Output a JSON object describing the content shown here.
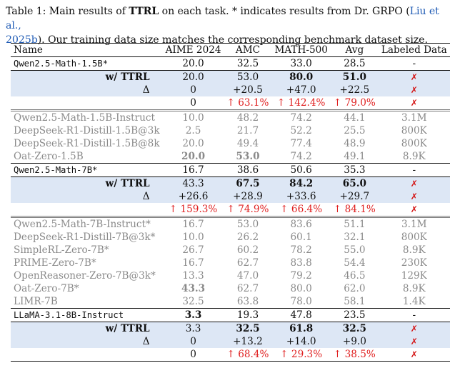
{
  "caption": {
    "prefix": "Table 1: Main results of ",
    "method": "TTRL",
    "middle": " on each task. * indicates results from Dr. GRPO (",
    "cite1": "Liu et al.,",
    "cite2": "2025b",
    "suffix": "). Our training data size matches the corresponding benchmark dataset size."
  },
  "columns": [
    "Name",
    "AIME 2024",
    "AMC",
    "MATH-500",
    "Avg",
    "Labeled Data"
  ],
  "blocks": {
    "qwen15": {
      "base": {
        "name": "Qwen2.5-Math-1.5B*",
        "aime": "20.0",
        "amc": "32.5",
        "math": "33.0",
        "avg": "28.5",
        "labeled": "-"
      },
      "ttrl": {
        "name": "w/ TTRL",
        "aime": "20.0",
        "amc": "53.0",
        "math": "80.0",
        "avg": "51.0",
        "labeled": "✗"
      },
      "delta": {
        "name": "Δ",
        "aime": "0",
        "amc": "+20.5",
        "math": "+47.0",
        "avg": "+22.5",
        "labeled": "✗"
      },
      "pct": {
        "aime": "0",
        "amc": "↑ 63.1%",
        "math": "↑ 142.4%",
        "avg": "↑ 79.0%",
        "labeled": "✗"
      }
    },
    "ref15": [
      {
        "name": "Qwen2.5-Math-1.5B-Instruct",
        "aime": "10.0",
        "amc": "48.2",
        "math": "74.2",
        "avg": "44.1",
        "labeled": "3.1M"
      },
      {
        "name": "DeepSeek-R1-Distill-1.5B@3k",
        "aime": "2.5",
        "amc": "21.7",
        "math": "52.2",
        "avg": "25.5",
        "labeled": "800K"
      },
      {
        "name": "DeepSeek-R1-Distill-1.5B@8k",
        "aime": "20.0",
        "amc": "49.4",
        "math": "77.4",
        "avg": "48.9",
        "labeled": "800K"
      },
      {
        "name": "Oat-Zero-1.5B",
        "aime": "20.0",
        "amc": "53.0",
        "math": "74.2",
        "avg": "49.1",
        "labeled": "8.9K"
      }
    ],
    "qwen7": {
      "base": {
        "name": "Qwen2.5-Math-7B*",
        "aime": "16.7",
        "amc": "38.6",
        "math": "50.6",
        "avg": "35.3",
        "labeled": "-"
      },
      "ttrl": {
        "name": "w/ TTRL",
        "aime": "43.3",
        "amc": "67.5",
        "math": "84.2",
        "avg": "65.0",
        "labeled": "✗"
      },
      "delta": {
        "name": "Δ",
        "aime": "+26.6",
        "amc": "+28.9",
        "math": "+33.6",
        "avg": "+29.7",
        "labeled": "✗"
      },
      "pct": {
        "aime": "↑ 159.3%",
        "amc": "↑ 74.9%",
        "math": "↑ 66.4%",
        "avg": "↑ 84.1%",
        "labeled": "✗"
      }
    },
    "ref7": [
      {
        "name": "Qwen2.5-Math-7B-Instruct*",
        "aime": "16.7",
        "amc": "53.0",
        "math": "83.6",
        "avg": "51.1",
        "labeled": "3.1M"
      },
      {
        "name": "DeepSeek-R1-Distill-7B@3k*",
        "aime": "10.0",
        "amc": "26.2",
        "math": "60.1",
        "avg": "32.1",
        "labeled": "800K"
      },
      {
        "name": "SimpleRL-Zero-7B*",
        "aime": "26.7",
        "amc": "60.2",
        "math": "78.2",
        "avg": "55.0",
        "labeled": "8.9K"
      },
      {
        "name": "PRIME-Zero-7B*",
        "aime": "16.7",
        "amc": "62.7",
        "math": "83.8",
        "avg": "54.4",
        "labeled": "230K"
      },
      {
        "name": "OpenReasoner-Zero-7B@3k*",
        "aime": "13.3",
        "amc": "47.0",
        "math": "79.2",
        "avg": "46.5",
        "labeled": "129K"
      },
      {
        "name": "Oat-Zero-7B*",
        "aime": "43.3",
        "amc": "62.7",
        "math": "80.0",
        "avg": "62.0",
        "labeled": "8.9K"
      },
      {
        "name": "LIMR-7B",
        "aime": "32.5",
        "amc": "63.8",
        "math": "78.0",
        "avg": "58.1",
        "labeled": "1.4K"
      }
    ],
    "llama": {
      "base": {
        "name": "LLaMA-3.1-8B-Instruct",
        "aime": "3.3",
        "amc": "19.3",
        "math": "47.8",
        "avg": "23.5",
        "labeled": "-"
      },
      "ttrl": {
        "name": "w/ TTRL",
        "aime": "3.3",
        "amc": "32.5",
        "math": "61.8",
        "avg": "32.5",
        "labeled": "✗"
      },
      "delta": {
        "name": "Δ",
        "aime": "0",
        "amc": "+13.2",
        "math": "+14.0",
        "avg": "+9.0",
        "labeled": "✗"
      },
      "pct": {
        "aime": "0",
        "amc": "↑ 68.4%",
        "math": "↑ 29.3%",
        "avg": "↑ 38.5%",
        "labeled": "✗"
      }
    }
  }
}
